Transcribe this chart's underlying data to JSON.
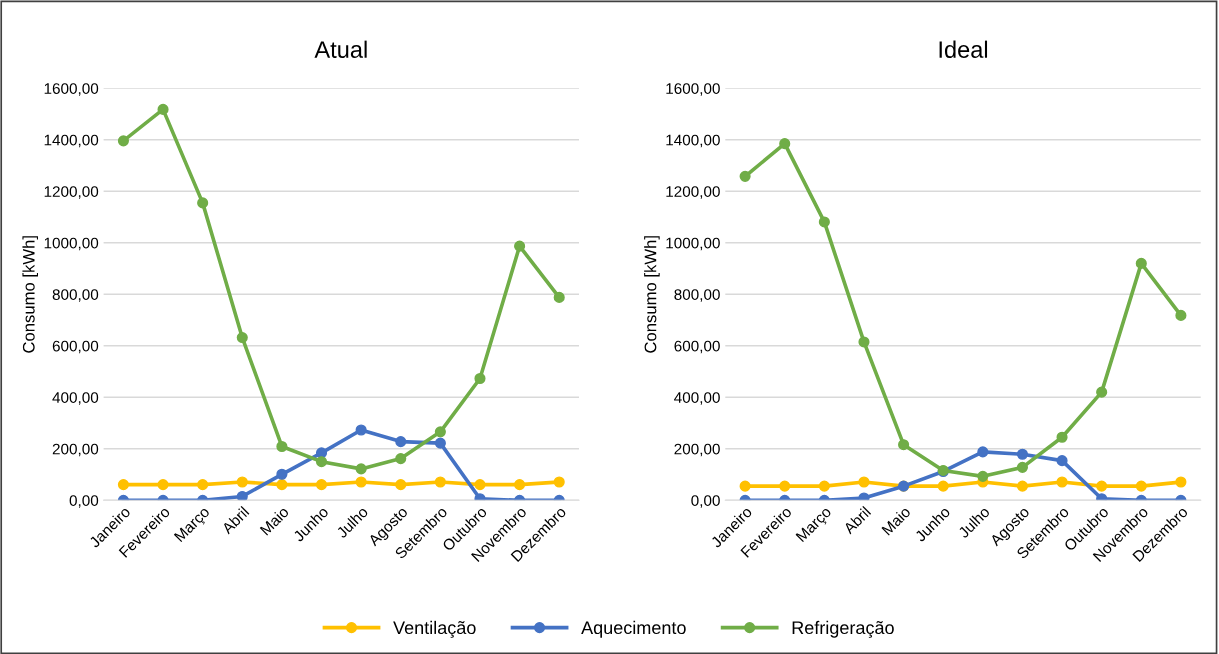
{
  "chart_data": [
    {
      "type": "line",
      "title": "Atual",
      "ylabel": "Consumo [kWh]",
      "categories": [
        "Janeiro",
        "Fevereiro",
        "Março",
        "Abril",
        "Maio",
        "Junho",
        "Julho",
        "Agosto",
        "Setembro",
        "Outubro",
        "Novembro",
        "Dezembro"
      ],
      "series": [
        {
          "name": "Ventilação",
          "color": "#ffc000",
          "values": [
            61,
            61,
            61,
            71,
            61,
            61,
            71,
            61,
            71,
            61,
            61,
            71
          ]
        },
        {
          "name": "Aquecimento",
          "color": "#4472c4",
          "values": [
            0,
            0,
            0,
            15,
            101,
            184,
            273,
            228,
            222,
            6,
            0,
            0
          ]
        },
        {
          "name": "Refrigeração",
          "color": "#70ad47",
          "values": [
            1396,
            1518,
            1155,
            632,
            209,
            150,
            122,
            162,
            266,
            473,
            987,
            788
          ]
        }
      ],
      "ylim": [
        0,
        1600
      ],
      "yticks": [
        {
          "value": 0,
          "label": "0,00"
        },
        {
          "value": 200,
          "label": "200,00"
        },
        {
          "value": 400,
          "label": "400,00"
        },
        {
          "value": 600,
          "label": "600,00"
        },
        {
          "value": 800,
          "label": "800,00"
        },
        {
          "value": 1000,
          "label": "1000,00"
        },
        {
          "value": 1200,
          "label": "1200,00"
        },
        {
          "value": 1400,
          "label": "1400,00"
        },
        {
          "value": 1600,
          "label": "1600,00"
        }
      ],
      "grid": "y",
      "marker": "circle",
      "line_style": "solid",
      "legend": "bottom"
    },
    {
      "type": "line",
      "title": "Ideal",
      "ylabel": "Consumo [kWh]",
      "categories": [
        "Janeiro",
        "Fevereiro",
        "Março",
        "Abril",
        "Maio",
        "Junho",
        "Julho",
        "Agosto",
        "Setembro",
        "Outubro",
        "Novembro",
        "Dezembro"
      ],
      "series": [
        {
          "name": "Ventilação",
          "color": "#ffc000",
          "values": [
            55,
            55,
            55,
            71,
            55,
            55,
            71,
            55,
            71,
            55,
            55,
            71
          ]
        },
        {
          "name": "Aquecimento",
          "color": "#4472c4",
          "values": [
            0,
            0,
            0,
            9,
            55,
            112,
            188,
            179,
            154,
            6,
            0,
            0
          ]
        },
        {
          "name": "Refrigeração",
          "color": "#70ad47",
          "values": [
            1258,
            1385,
            1081,
            615,
            216,
            116,
            93,
            128,
            245,
            420,
            920,
            718
          ]
        }
      ],
      "ylim": [
        0,
        1600
      ],
      "yticks": [
        {
          "value": 0,
          "label": "0,00"
        },
        {
          "value": 200,
          "label": "200,00"
        },
        {
          "value": 400,
          "label": "400,00"
        },
        {
          "value": 600,
          "label": "600,00"
        },
        {
          "value": 800,
          "label": "800,00"
        },
        {
          "value": 1000,
          "label": "1000,00"
        },
        {
          "value": 1200,
          "label": "1200,00"
        },
        {
          "value": 1400,
          "label": "1400,00"
        },
        {
          "value": 1600,
          "label": "1600,00"
        }
      ],
      "grid": "y",
      "marker": "circle",
      "line_style": "solid",
      "legend": "bottom"
    }
  ]
}
